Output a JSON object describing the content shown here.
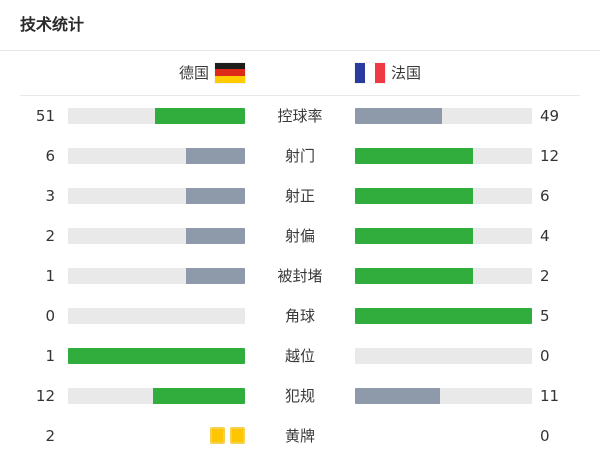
{
  "title": "技术统计",
  "teams": {
    "home": {
      "name": "德国",
      "flag": "germany-flag"
    },
    "away": {
      "name": "法国",
      "flag": "france-flag"
    }
  },
  "colors": {
    "highlight_green": "#31ad3d",
    "muted_gray": "#8e99aa",
    "bar_track": "#e9e9e9",
    "divider": "#e8e8e8",
    "text": "#333333",
    "card_fill": "#fec502",
    "card_border": "#f6d14e",
    "flag_germany": [
      "#1d1d1b",
      "#dd2a1b",
      "#ffcc00"
    ],
    "flag_france": [
      "#2a3b9e",
      "#ffffff",
      "#ee3a44"
    ]
  },
  "stats": [
    {
      "label": "控球率",
      "home": "51",
      "away": "49",
      "home_pct": 51,
      "away_pct": 49,
      "home_color": "green",
      "away_color": "gray",
      "kind": "bar"
    },
    {
      "label": "射门",
      "home": "6",
      "away": "12",
      "home_pct": 33.3,
      "away_pct": 66.7,
      "home_color": "gray",
      "away_color": "green",
      "kind": "bar"
    },
    {
      "label": "射正",
      "home": "3",
      "away": "6",
      "home_pct": 33.3,
      "away_pct": 66.7,
      "home_color": "gray",
      "away_color": "green",
      "kind": "bar"
    },
    {
      "label": "射偏",
      "home": "2",
      "away": "4",
      "home_pct": 33.3,
      "away_pct": 66.7,
      "home_color": "gray",
      "away_color": "green",
      "kind": "bar"
    },
    {
      "label": "被封堵",
      "home": "1",
      "away": "2",
      "home_pct": 33.3,
      "away_pct": 66.7,
      "home_color": "gray",
      "away_color": "green",
      "kind": "bar"
    },
    {
      "label": "角球",
      "home": "0",
      "away": "5",
      "home_pct": 0,
      "away_pct": 100,
      "home_color": "gray",
      "away_color": "green",
      "kind": "bar"
    },
    {
      "label": "越位",
      "home": "1",
      "away": "0",
      "home_pct": 100,
      "away_pct": 0,
      "home_color": "green",
      "away_color": "gray",
      "kind": "bar"
    },
    {
      "label": "犯规",
      "home": "12",
      "away": "11",
      "home_pct": 52.2,
      "away_pct": 47.8,
      "home_color": "green",
      "away_color": "gray",
      "kind": "bar"
    },
    {
      "label": "黄牌",
      "home": "2",
      "away": "0",
      "home_cards": 2,
      "away_cards": 0,
      "home_color": "yellow",
      "away_color": "yellow",
      "kind": "cards"
    }
  ],
  "chart_data": {
    "type": "bar",
    "title": "技术统计",
    "orientation": "horizontal-paired",
    "categories": [
      "控球率",
      "射门",
      "射正",
      "射偏",
      "被封堵",
      "角球",
      "越位",
      "犯规",
      "黄牌"
    ],
    "series": [
      {
        "name": "德国",
        "values": [
          51,
          6,
          3,
          2,
          1,
          0,
          1,
          12,
          2
        ]
      },
      {
        "name": "法国",
        "values": [
          49,
          12,
          6,
          4,
          2,
          5,
          0,
          11,
          0
        ]
      }
    ],
    "legend_position": "top",
    "grid": false,
    "note": "fill length = value / (home+away); leading value shown green, trailing gray; 黄牌 row shows yellow-card icons instead of bars"
  }
}
